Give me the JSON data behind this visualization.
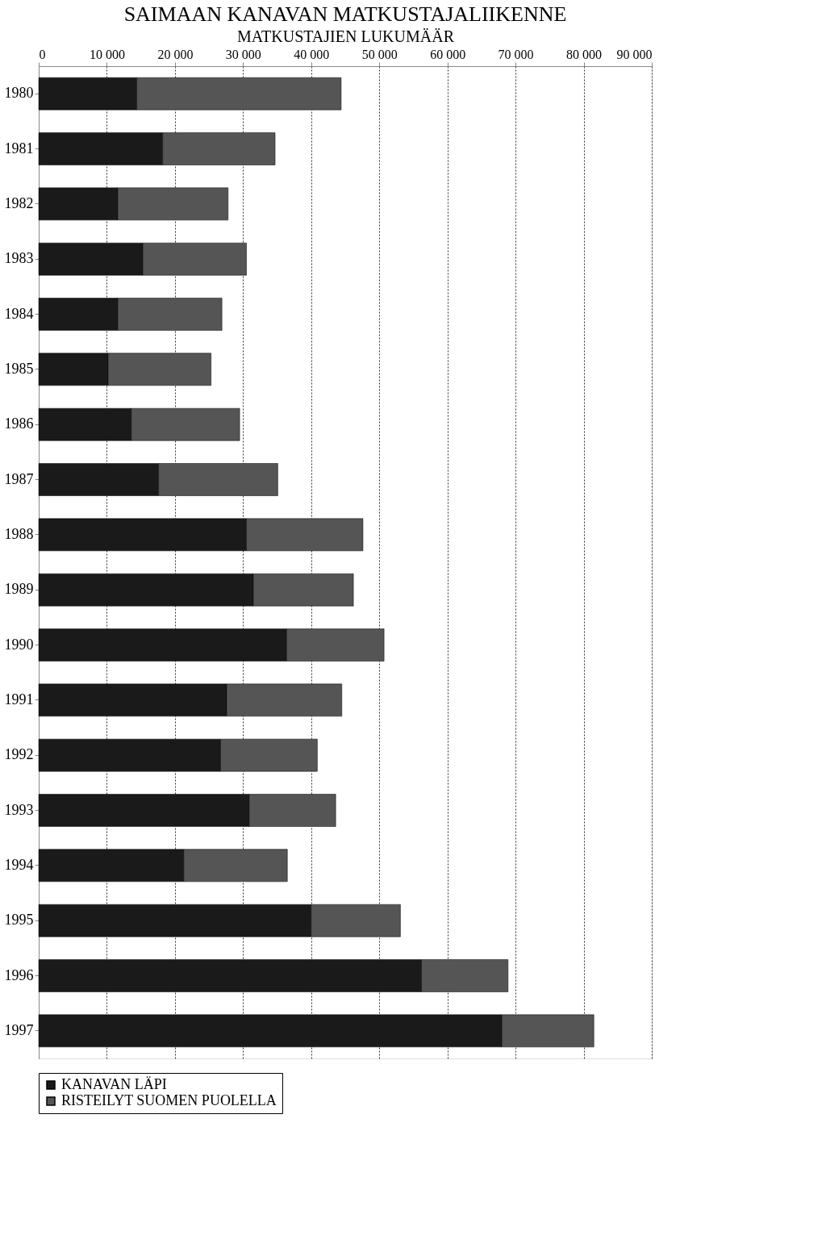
{
  "chart_data": {
    "type": "bar",
    "orientation": "horizontal",
    "stacked": true,
    "title": "SAIMAAN KANAVAN MATKUSTAJALIIKENNE",
    "xlabel": "MATKUSTAJIEN LUKUMÄÄR",
    "categories": [
      "1980",
      "1981",
      "1982",
      "1983",
      "1984",
      "1985",
      "1986",
      "1987",
      "1988",
      "1989",
      "1990",
      "1991",
      "1992",
      "1993",
      "1994",
      "1995",
      "1996",
      "1997"
    ],
    "series": [
      {
        "name": "KANAVAN LÄPI",
        "color": "#1a1a1a",
        "values": [
          14400,
          18200,
          11600,
          15300,
          11600,
          10200,
          13600,
          17600,
          30500,
          31500,
          36400,
          27600,
          26700,
          30900,
          21300,
          40000,
          56200,
          68000
        ]
      },
      {
        "name": "RISTEILYT SUOMEN PUOLELLA",
        "color": "#555555",
        "values": [
          30000,
          16500,
          16200,
          15200,
          15300,
          15100,
          15900,
          17500,
          17100,
          14700,
          14300,
          16900,
          14200,
          12700,
          15200,
          13100,
          12700,
          13500
        ]
      }
    ],
    "xlim": [
      0,
      90000
    ],
    "xticks": [
      0,
      {
        "value": 10000,
        "label": "10 000"
      },
      {
        "value": 20000,
        "label": "20 000"
      },
      {
        "value": 30000,
        "label": "30 000"
      },
      {
        "value": 40000,
        "label": "40 000"
      },
      {
        "value": 50000,
        "label": "50 000"
      },
      {
        "value": 60000,
        "label": "60 000"
      },
      {
        "value": 70000,
        "label": "70 000"
      },
      {
        "value": 80000,
        "label": "80 000"
      },
      {
        "value": 90000,
        "label": "90 000"
      }
    ],
    "grid": "x",
    "legend": "bottom"
  }
}
